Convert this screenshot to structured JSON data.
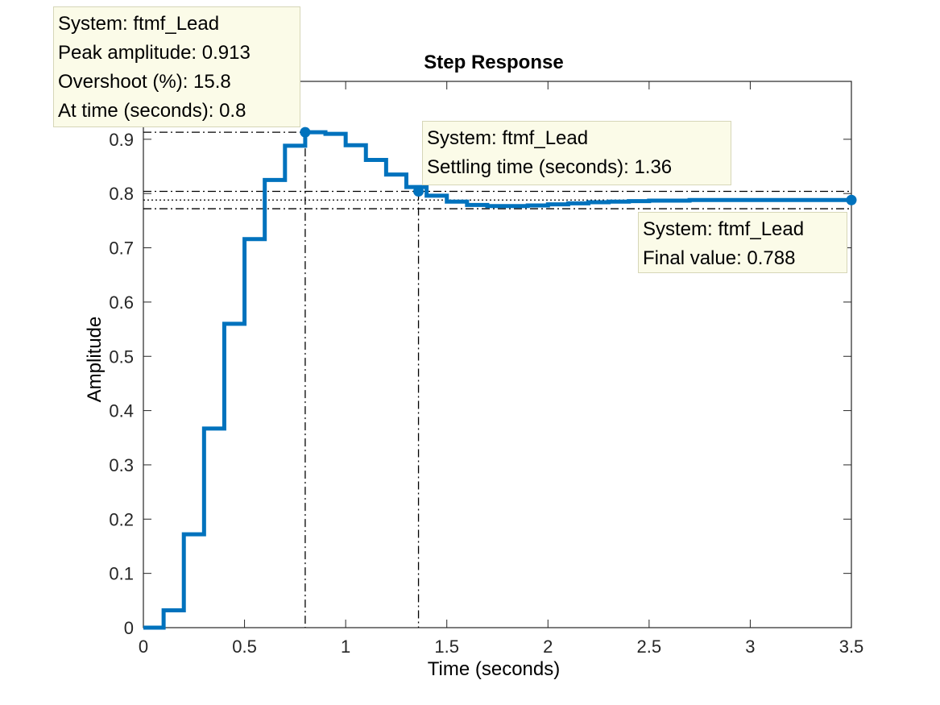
{
  "chart_data": {
    "type": "line",
    "title": "Step Response",
    "xlabel": "Time (seconds)",
    "ylabel": "Amplitude",
    "xlim": [
      0,
      3.5
    ],
    "ylim": [
      0,
      0.95
    ],
    "xticks": [
      0,
      0.5,
      1,
      1.5,
      2,
      2.5,
      3,
      3.5
    ],
    "xtick_labels": [
      "0",
      "0.5",
      "1",
      "1.5",
      "2",
      "2.5",
      "3",
      "3.5"
    ],
    "yticks": [
      0,
      0.1,
      0.2,
      0.3,
      0.4,
      0.5,
      0.6,
      0.7,
      0.8,
      0.9
    ],
    "ytick_labels": [
      "0",
      "0.1",
      "0.2",
      "0.3",
      "0.4",
      "0.5",
      "0.6",
      "0.7",
      "0.8",
      "0.9"
    ],
    "grid": false,
    "series": [
      {
        "color": "#0072bd",
        "step": true,
        "x": [
          0,
          0.1,
          0.2,
          0.3,
          0.4,
          0.5,
          0.6,
          0.7,
          0.8,
          0.9,
          1.0,
          1.1,
          1.2,
          1.3,
          1.4,
          1.5,
          1.6,
          1.7,
          1.8,
          1.9,
          2.0,
          2.1,
          2.2,
          2.3,
          2.4,
          2.5,
          2.6,
          2.7,
          2.8,
          2.9,
          3.0,
          3.1,
          3.2,
          3.3,
          3.4,
          3.5
        ],
        "y": [
          0,
          0.032,
          0.172,
          0.367,
          0.56,
          0.716,
          0.825,
          0.888,
          0.913,
          0.91,
          0.889,
          0.862,
          0.835,
          0.812,
          0.796,
          0.785,
          0.779,
          0.777,
          0.777,
          0.778,
          0.78,
          0.782,
          0.784,
          0.785,
          0.786,
          0.787,
          0.787,
          0.788,
          0.788,
          0.788,
          0.788,
          0.788,
          0.788,
          0.788,
          0.788,
          0.788
        ]
      }
    ],
    "settling_band": [
      0.772,
      0.804
    ],
    "final_value": 0.788,
    "markers": [
      {
        "x": 0.8,
        "y": 0.913
      },
      {
        "x": 1.36,
        "y": 0.804
      },
      {
        "x": 3.5,
        "y": 0.788
      }
    ],
    "annotations": [
      {
        "lines": [
          "System: ftmf_Lead",
          "Peak amplitude: 0.913",
          "Overshoot (%): 15.8",
          "At time (seconds): 0.8"
        ]
      },
      {
        "lines": [
          "System: ftmf_Lead",
          "Settling time (seconds): 1.36"
        ]
      },
      {
        "lines": [
          "System: ftmf_Lead",
          "Final value: 0.788"
        ]
      }
    ]
  }
}
